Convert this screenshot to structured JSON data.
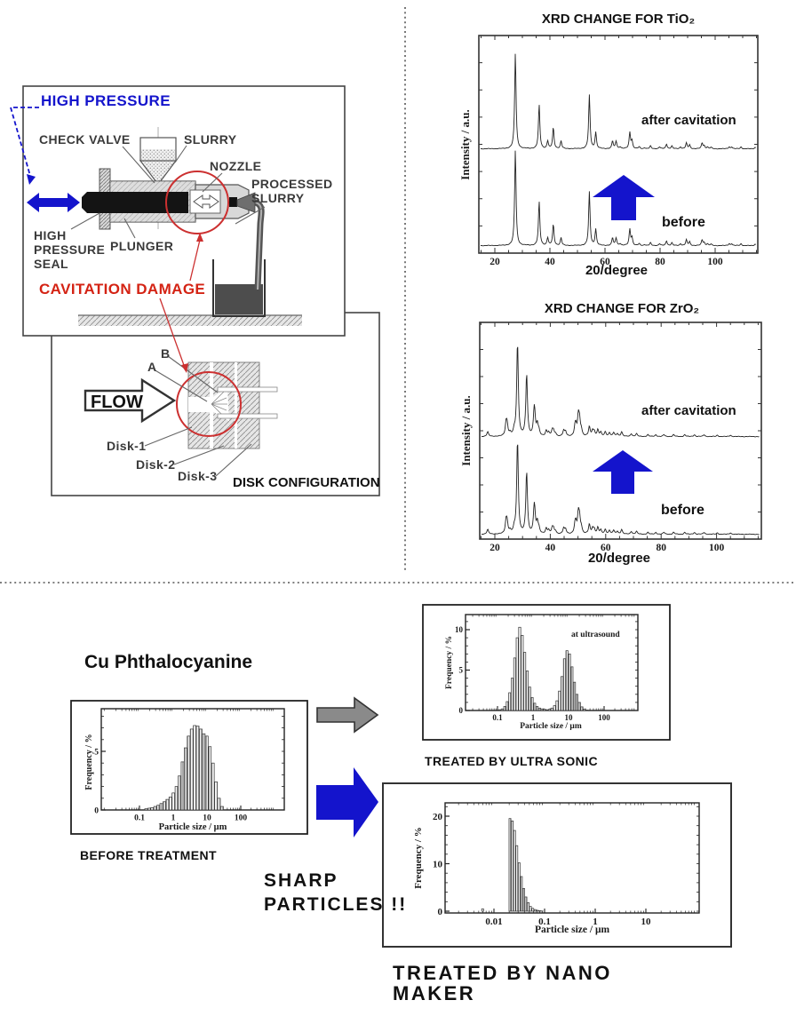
{
  "colors": {
    "blue_accent": "#1414cc",
    "red_label": "#d42314",
    "orange_red": "#e83f1a",
    "gray_arrow": "#8a8a8a",
    "line_dark": "#333333",
    "background": "#ffffff"
  },
  "apparatus": {
    "labels": {
      "high_pressure": "HIGH PRESSURE",
      "check_valve": "CHECK VALVE",
      "slurry": "SLURRY",
      "nozzle": "NOZZLE",
      "processed_line1": "PROCESSED",
      "processed_line2": "SLURRY",
      "seal_line1": "HIGH",
      "seal_line2": "PRESSURE",
      "seal_line3": "SEAL",
      "plunger": "PLUNGER",
      "cavitation_damage": "CAVITATION DAMAGE"
    },
    "disk_section": {
      "flow": "FLOW",
      "point_a": "A",
      "point_b": "B",
      "disk1": "Disk-1",
      "disk2": "Disk-2",
      "disk3": "Disk-3",
      "caption": "DISK CONFIGURATION"
    }
  },
  "bottom": {
    "compound": "Cu Phthalocyanine",
    "before_label": "BEFORE TREATMENT",
    "ultra_label": "TREATED BY ULTRA SONIC",
    "sharp_line1": "SHARP",
    "sharp_line2": "PARTICLES !!",
    "nano_line1": "TREATED BY NANO",
    "nano_line2": "MAKER"
  },
  "chart_data": [
    {
      "id": "xrd_tio2",
      "type": "line",
      "title": "XRD CHANGE FOR TiO₂",
      "xlabel": "20/degree",
      "ylabel": "Intensity / a.u.",
      "xticks": [
        20,
        40,
        60,
        80,
        100
      ],
      "xlim": [
        14,
        116
      ],
      "grid": false,
      "series": [
        {
          "name": "after cavitation",
          "offset": "upper"
        },
        {
          "name": "before",
          "offset": "lower"
        }
      ],
      "peaks_2theta_relintensity": [
        [
          27.45,
          100
        ],
        [
          36.09,
          46
        ],
        [
          39.19,
          8
        ],
        [
          41.23,
          22
        ],
        [
          44.05,
          8
        ],
        [
          54.32,
          56
        ],
        [
          56.64,
          17
        ],
        [
          62.74,
          8
        ],
        [
          64.04,
          8
        ],
        [
          65.48,
          2
        ],
        [
          69.01,
          17
        ],
        [
          69.79,
          8
        ],
        [
          72.41,
          2
        ],
        [
          74.41,
          1
        ],
        [
          76.51,
          3
        ],
        [
          79.82,
          2
        ],
        [
          82.34,
          5
        ],
        [
          84.26,
          3
        ],
        [
          87.46,
          2
        ],
        [
          89.55,
          6
        ],
        [
          90.71,
          4
        ],
        [
          95.27,
          6
        ],
        [
          96.01,
          3
        ],
        [
          97.18,
          2
        ],
        [
          98.51,
          1.5
        ],
        [
          105.1,
          2
        ],
        [
          106.02,
          2
        ],
        [
          109.41,
          2
        ],
        [
          114.5,
          1.5
        ]
      ]
    },
    {
      "id": "xrd_zro2",
      "type": "line",
      "title": "XRD CHANGE FOR ZrO₂",
      "xlabel": "20/degree",
      "ylabel": "Intensity / a.u.",
      "xticks": [
        20,
        40,
        60,
        80,
        100
      ],
      "xlim": [
        14,
        116
      ],
      "grid": false,
      "series": [
        {
          "name": "after cavitation",
          "offset": "upper"
        },
        {
          "name": "before",
          "offset": "lower"
        }
      ],
      "peaks_2theta_relintensity": [
        [
          17.42,
          5
        ],
        [
          24.05,
          13
        ],
        [
          24.44,
          11
        ],
        [
          25.5,
          3
        ],
        [
          27.0,
          5
        ],
        [
          28.18,
          100
        ],
        [
          31.47,
          66
        ],
        [
          34.16,
          20
        ],
        [
          34.38,
          15
        ],
        [
          35.31,
          12
        ],
        [
          35.9,
          5
        ],
        [
          38.54,
          6
        ],
        [
          39.4,
          4
        ],
        [
          40.72,
          6
        ],
        [
          41.15,
          5
        ],
        [
          41.9,
          3
        ],
        [
          44.83,
          6
        ],
        [
          45.52,
          5
        ],
        [
          48.94,
          9
        ],
        [
          49.27,
          8
        ],
        [
          50.12,
          20
        ],
        [
          50.56,
          15
        ],
        [
          51.2,
          6
        ],
        [
          54.1,
          10
        ],
        [
          55.27,
          6
        ],
        [
          55.89,
          5
        ],
        [
          57.17,
          7
        ],
        [
          58.24,
          4
        ],
        [
          59.87,
          5
        ],
        [
          61.35,
          4
        ],
        [
          62.87,
          4
        ],
        [
          64.2,
          3
        ],
        [
          65.75,
          5
        ],
        [
          69.25,
          3
        ],
        [
          71.1,
          3
        ],
        [
          75.2,
          2
        ],
        [
          78.1,
          2
        ],
        [
          81.0,
          2
        ],
        [
          84.5,
          2
        ],
        [
          88.5,
          2
        ],
        [
          92.0,
          2
        ],
        [
          95.5,
          2
        ],
        [
          100.3,
          1.5
        ],
        [
          105.0,
          1.5
        ]
      ]
    },
    {
      "id": "hist_before",
      "type": "bar",
      "annotation": "",
      "xlabel": "Particle size / μm",
      "ylabel": "Frequency / %",
      "xticks": [
        0.1,
        1,
        10,
        100
      ],
      "yticks": [
        0,
        5
      ],
      "y_minor": 1,
      "xlim": [
        0.01,
        1500
      ],
      "ylim": [
        0,
        8.6
      ],
      "log_start": -0.8,
      "log_step": 0.09,
      "heights": [
        0.1,
        0.15,
        0.2,
        0.3,
        0.4,
        0.55,
        0.7,
        0.9,
        1.1,
        1.45,
        2.0,
        2.9,
        4.1,
        5.3,
        6.3,
        6.9,
        7.2,
        7.15,
        6.9,
        6.5,
        6.3,
        5.4,
        4.0,
        2.4,
        1.0,
        0.3
      ]
    },
    {
      "id": "hist_ultra",
      "type": "bar",
      "annotation": "at ultrasound",
      "xlabel": "Particle size / μm",
      "ylabel": "Frequency / %",
      "xticks": [
        0.1,
        1,
        10,
        100
      ],
      "yticks": [
        0,
        5,
        10
      ],
      "y_minor": 1,
      "xlim": [
        0.015,
        1000
      ],
      "ylim": [
        0,
        11.9
      ],
      "log_start": -1.0,
      "log_step": 0.07,
      "heights": [
        0.05,
        0.1,
        0.2,
        0.5,
        1.1,
        2.2,
        4.0,
        6.5,
        9.0,
        10.3,
        9.3,
        7.2,
        4.9,
        2.9,
        1.6,
        0.9,
        0.5,
        0.3,
        0.2,
        0.15,
        0.1,
        0.15,
        0.3,
        0.6,
        1.2,
        2.4,
        4.2,
        6.4,
        7.4,
        7.0,
        5.4,
        3.5,
        2.0,
        1.0,
        0.45,
        0.18,
        0.05,
        0,
        0,
        0
      ]
    },
    {
      "id": "hist_nano",
      "type": "bar",
      "annotation": "",
      "xlabel": "Particle size / μm",
      "ylabel": "Frequency / %",
      "xticks": [
        0.01,
        0.1,
        1,
        10
      ],
      "yticks": [
        0,
        10,
        20
      ],
      "y_minor": 2,
      "xlim": [
        0.001,
        100
      ],
      "ylim": [
        0,
        22.8
      ],
      "log_start": -2.22,
      "log_step": 0.045,
      "heights": [
        0.5,
        0,
        0,
        0,
        0,
        0,
        0,
        0,
        0,
        0,
        0,
        0,
        19.5,
        19.0,
        17.0,
        13.8,
        10.2,
        7.3,
        4.8,
        3.0,
        1.8,
        1.0,
        0.6,
        0.35,
        0.2,
        0.1,
        0.05
      ]
    }
  ]
}
